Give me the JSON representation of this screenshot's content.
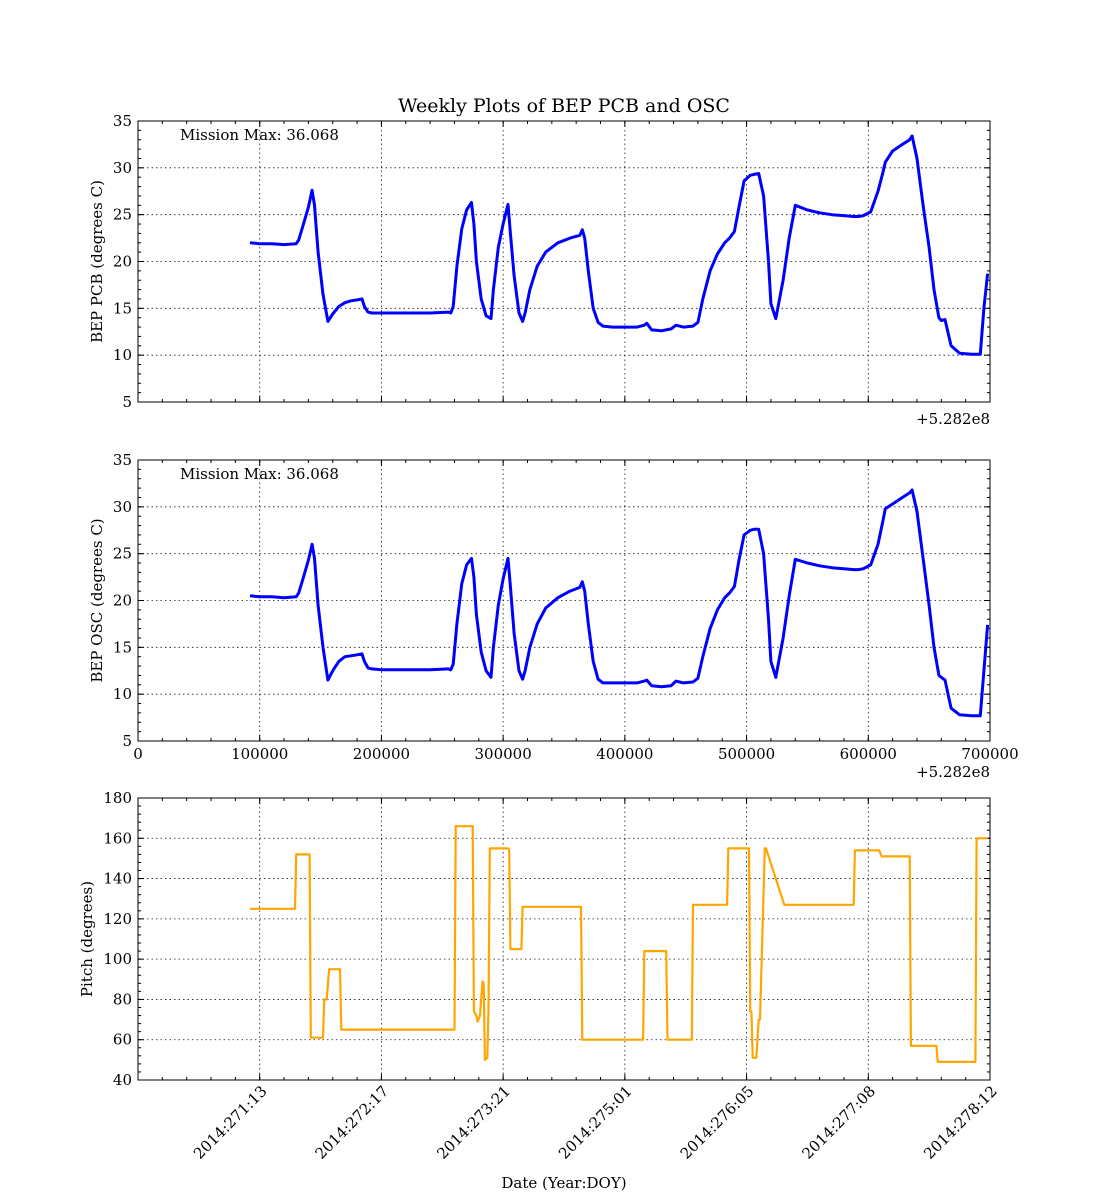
{
  "figure": {
    "title": "Weekly Plots of BEP PCB and OSC",
    "xlabel": "Date (Year:DOY)",
    "offset_label": "+5.282e8"
  },
  "colors": {
    "temp_line": "#0000ff",
    "pitch_line": "#ffa500"
  },
  "chart_data": [
    {
      "type": "line",
      "ylabel": "BEP PCB (degrees C)",
      "annotation": "Mission Max: 36.068",
      "xlim": [
        0,
        700000
      ],
      "ylim": [
        5,
        35
      ],
      "yticks": [
        5,
        10,
        15,
        20,
        25,
        30,
        35
      ],
      "x_offset": "+5.282e8",
      "grid": true,
      "series": [
        {
          "x": [
            92000,
            100000,
            110000,
            120000,
            130000,
            132000,
            136000,
            140000,
            143000,
            145000,
            148000,
            152000,
            156000,
            160000,
            165000,
            170000,
            175000,
            180000,
            184000,
            186000,
            189000,
            192000,
            200000,
            220000,
            240000,
            255000,
            257000,
            259000,
            262000,
            266000,
            270000,
            274000,
            276000,
            278000,
            282000,
            286000,
            290000,
            292000,
            296000,
            300000,
            304000,
            306000,
            309000,
            313000,
            316000,
            318000,
            322000,
            328000,
            335000,
            345000,
            355000,
            363000,
            365000,
            367000,
            370000,
            374000,
            378000,
            382000,
            390000,
            400000,
            410000,
            416000,
            418000,
            422000,
            430000,
            438000,
            442000,
            448000,
            456000,
            460000,
            464000,
            470000,
            476000,
            482000,
            486000,
            490000,
            494000,
            498000,
            503000,
            506000,
            510000,
            514000,
            518000,
            520000,
            524000,
            530000,
            535000,
            540000,
            550000,
            560000,
            570000,
            580000,
            588000,
            592000,
            596000,
            602000,
            608000,
            612000,
            614000,
            620000,
            628000,
            634000,
            636000,
            640000,
            645000,
            650000,
            654000,
            658000,
            660000,
            663000,
            668000,
            675000,
            685000,
            692000,
            695000,
            698000
          ],
          "y": [
            22.0,
            21.9,
            21.9,
            21.8,
            21.9,
            22.3,
            24.0,
            25.8,
            27.6,
            26.0,
            21.0,
            16.5,
            13.6,
            14.4,
            15.2,
            15.6,
            15.8,
            15.9,
            16.0,
            15.2,
            14.6,
            14.5,
            14.5,
            14.5,
            14.5,
            14.6,
            14.5,
            15.2,
            19.5,
            23.5,
            25.5,
            26.3,
            24.0,
            20.0,
            16.0,
            14.2,
            13.9,
            17.0,
            21.5,
            24.0,
            26.1,
            23.0,
            18.5,
            14.5,
            13.6,
            14.5,
            17.0,
            19.5,
            21.0,
            22.0,
            22.5,
            22.8,
            23.4,
            22.5,
            19.0,
            15.0,
            13.5,
            13.1,
            13.0,
            13.0,
            13.0,
            13.2,
            13.4,
            12.7,
            12.6,
            12.8,
            13.2,
            13.0,
            13.1,
            13.5,
            16.0,
            19.0,
            20.8,
            22.0,
            22.5,
            23.2,
            26.0,
            28.6,
            29.2,
            29.3,
            29.4,
            27.0,
            20.0,
            15.5,
            13.9,
            18.0,
            22.5,
            26.0,
            25.5,
            25.2,
            25.0,
            24.9,
            24.8,
            24.8,
            24.9,
            25.3,
            27.5,
            29.5,
            30.6,
            31.8,
            32.5,
            33.0,
            33.4,
            31.0,
            26.0,
            21.5,
            17.0,
            14.0,
            13.7,
            13.8,
            11.0,
            10.2,
            10.1,
            10.1,
            15.0,
            18.7
          ]
        }
      ]
    },
    {
      "type": "line",
      "ylabel": "BEP OSC (degrees C)",
      "annotation": "Mission Max: 36.068",
      "xlim": [
        0,
        700000
      ],
      "ylim": [
        5,
        35
      ],
      "yticks": [
        5,
        10,
        15,
        20,
        25,
        30,
        35
      ],
      "xticks": [
        0,
        100000,
        200000,
        300000,
        400000,
        500000,
        600000,
        700000
      ],
      "xtick_labels": [
        "0",
        "100000",
        "200000",
        "300000",
        "400000",
        "500000",
        "600000",
        "700000"
      ],
      "x_offset": "+5.282e8",
      "grid": true,
      "series": [
        {
          "x": [
            92000,
            100000,
            110000,
            120000,
            130000,
            132000,
            136000,
            140000,
            143000,
            145000,
            148000,
            152000,
            156000,
            160000,
            165000,
            170000,
            175000,
            180000,
            184000,
            186000,
            189000,
            192000,
            200000,
            220000,
            240000,
            255000,
            257000,
            259000,
            262000,
            266000,
            270000,
            274000,
            276000,
            278000,
            282000,
            286000,
            290000,
            292000,
            296000,
            300000,
            304000,
            306000,
            309000,
            313000,
            316000,
            318000,
            322000,
            328000,
            335000,
            345000,
            355000,
            363000,
            365000,
            367000,
            370000,
            374000,
            378000,
            382000,
            390000,
            400000,
            410000,
            416000,
            418000,
            422000,
            430000,
            438000,
            442000,
            448000,
            456000,
            460000,
            464000,
            470000,
            476000,
            482000,
            486000,
            490000,
            494000,
            498000,
            503000,
            506000,
            510000,
            514000,
            518000,
            520000,
            524000,
            530000,
            535000,
            540000,
            550000,
            560000,
            570000,
            580000,
            588000,
            592000,
            596000,
            602000,
            608000,
            612000,
            614000,
            620000,
            628000,
            634000,
            636000,
            640000,
            645000,
            650000,
            654000,
            658000,
            660000,
            663000,
            668000,
            675000,
            685000,
            692000,
            695000,
            698000
          ],
          "y": [
            20.5,
            20.4,
            20.4,
            20.3,
            20.4,
            20.8,
            22.5,
            24.3,
            26.0,
            24.5,
            19.5,
            15.0,
            11.5,
            12.5,
            13.5,
            14.0,
            14.1,
            14.2,
            14.3,
            13.5,
            12.8,
            12.7,
            12.6,
            12.6,
            12.6,
            12.7,
            12.6,
            13.2,
            17.5,
            21.8,
            23.8,
            24.5,
            22.5,
            18.5,
            14.5,
            12.5,
            11.8,
            15.0,
            19.5,
            22.3,
            24.5,
            21.5,
            16.5,
            12.5,
            11.6,
            12.5,
            15.0,
            17.5,
            19.2,
            20.3,
            21.0,
            21.4,
            22.0,
            21.0,
            17.5,
            13.5,
            11.6,
            11.2,
            11.2,
            11.2,
            11.2,
            11.4,
            11.5,
            10.9,
            10.8,
            10.9,
            11.4,
            11.2,
            11.3,
            11.7,
            14.0,
            17.0,
            19.0,
            20.3,
            20.8,
            21.5,
            24.5,
            27.0,
            27.5,
            27.6,
            27.6,
            25.0,
            18.0,
            13.5,
            11.8,
            16.0,
            20.5,
            24.4,
            24.0,
            23.7,
            23.5,
            23.4,
            23.3,
            23.3,
            23.4,
            23.8,
            26.0,
            28.5,
            29.8,
            30.3,
            31.0,
            31.5,
            31.8,
            29.5,
            24.5,
            19.5,
            15.0,
            12.0,
            11.8,
            11.5,
            8.5,
            7.8,
            7.7,
            7.7,
            12.5,
            17.4
          ]
        }
      ]
    },
    {
      "type": "line",
      "ylabel": "Pitch (degrees)",
      "xlabel": "Date (Year:DOY)",
      "xlim": [
        0,
        700000
      ],
      "ylim": [
        40,
        180
      ],
      "yticks": [
        40,
        60,
        80,
        100,
        120,
        140,
        160,
        180
      ],
      "xticks": [
        100000,
        200000,
        300000,
        400000,
        500000,
        600000,
        700000
      ],
      "xtick_labels": [
        "2014:271:13",
        "2014:272:17",
        "2014:273:21",
        "2014:275:01",
        "2014:276:05",
        "2014:277:08",
        "2014:278:12"
      ],
      "grid": true,
      "series": [
        {
          "x": [
            92000,
            129000,
            130000,
            141000,
            142000,
            152000,
            153000,
            155000,
            157000,
            166000,
            167000,
            198000,
            199000,
            260000,
            261000,
            275000,
            276000,
            278000,
            279000,
            281000,
            283000,
            284000,
            285000,
            287000,
            288000,
            289000,
            290000,
            292000,
            304000,
            305000,
            306000,
            315000,
            316000,
            364000,
            365000,
            415000,
            416000,
            434000,
            435000,
            455000,
            456000,
            484000,
            485000,
            502000,
            503000,
            504000,
            505000,
            508000,
            510000,
            511000,
            515000,
            516000,
            531000,
            532000,
            588000,
            589000,
            609000,
            611000,
            634000,
            635000,
            656000,
            657000,
            688000,
            689000,
            698000
          ],
          "y": [
            125,
            125,
            152,
            152,
            61,
            61,
            80,
            80,
            95,
            95,
            65,
            65,
            65,
            65,
            166,
            166,
            74,
            72,
            69,
            72,
            89,
            88,
            50,
            51,
            75,
            155,
            155,
            155,
            155,
            154,
            105,
            105,
            126,
            126,
            60,
            60,
            104,
            104,
            60,
            60,
            127,
            127,
            155,
            155,
            74,
            74,
            51,
            51,
            70,
            70,
            155,
            155,
            127,
            127,
            127,
            154,
            154,
            151,
            151,
            57,
            57,
            49,
            49,
            160,
            160
          ]
        }
      ]
    }
  ]
}
